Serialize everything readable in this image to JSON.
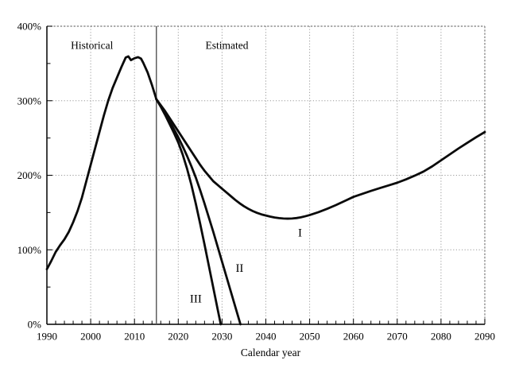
{
  "chart_data": {
    "type": "line",
    "title": "",
    "xlabel": "Calendar year",
    "ylabel": "",
    "x_range": [
      1990,
      2090
    ],
    "y_range_pct": [
      0,
      400
    ],
    "x_major_tick_step": 10,
    "x_minor_tick_step": 2,
    "y_major_tick_step": 100,
    "y_minor_tick_step": 50,
    "x_tick_labels": [
      "1990",
      "2000",
      "2010",
      "2020",
      "2030",
      "2040",
      "2050",
      "2060",
      "2070",
      "2080",
      "2090"
    ],
    "y_tick_labels": [
      "0%",
      "100%",
      "200%",
      "300%",
      "400%"
    ],
    "grid": "dotted",
    "legend_position": "none",
    "divider_year": 2015,
    "colors": {
      "line": "#0a0a0a",
      "grid": "#9a9a9a",
      "frame": "#7a7a7a",
      "divider": "#555555",
      "axis": "#000000",
      "text": "#000000"
    },
    "region_labels": [
      {
        "text": "Historical",
        "year": 2000.3,
        "pct": 375
      },
      {
        "text": "Estimated",
        "year": 2031.1,
        "pct": 375
      }
    ],
    "series": [
      {
        "name": "Historical",
        "label": "",
        "points": [
          [
            1990,
            74
          ],
          [
            1991,
            85
          ],
          [
            1992,
            97
          ],
          [
            1993,
            106
          ],
          [
            1994,
            114
          ],
          [
            1995,
            124
          ],
          [
            1996,
            137
          ],
          [
            1997,
            152
          ],
          [
            1998,
            170
          ],
          [
            1999,
            192
          ],
          [
            2000,
            214
          ],
          [
            2001,
            236
          ],
          [
            2002,
            258
          ],
          [
            2003,
            280
          ],
          [
            2004,
            300
          ],
          [
            2005,
            317
          ],
          [
            2006,
            331
          ],
          [
            2007,
            345
          ],
          [
            2008,
            358
          ],
          [
            2008.6,
            359.5
          ],
          [
            2009.2,
            354.5
          ],
          [
            2010,
            357
          ],
          [
            2010.8,
            358.5
          ],
          [
            2011.5,
            356.5
          ],
          [
            2012,
            351
          ],
          [
            2013,
            338
          ],
          [
            2014,
            321
          ],
          [
            2015,
            302
          ]
        ]
      },
      {
        "name": "Alternative I",
        "label": "I",
        "label_year": 2047.8,
        "label_pct": 123,
        "points": [
          [
            2015,
            302
          ],
          [
            2016,
            294
          ],
          [
            2017,
            286
          ],
          [
            2018,
            277
          ],
          [
            2019,
            268
          ],
          [
            2020,
            259
          ],
          [
            2021,
            250
          ],
          [
            2022,
            241
          ],
          [
            2023,
            232
          ],
          [
            2024,
            223
          ],
          [
            2025,
            214
          ],
          [
            2026,
            206
          ],
          [
            2027,
            199
          ],
          [
            2028,
            192
          ],
          [
            2029,
            187
          ],
          [
            2030,
            182
          ],
          [
            2031,
            177
          ],
          [
            2032,
            172
          ],
          [
            2033,
            167
          ],
          [
            2034,
            162.5
          ],
          [
            2035,
            158.5
          ],
          [
            2036,
            155
          ],
          [
            2037,
            152
          ],
          [
            2038,
            149.5
          ],
          [
            2039,
            147.5
          ],
          [
            2040,
            146
          ],
          [
            2041,
            144.5
          ],
          [
            2042,
            143.3
          ],
          [
            2043,
            142.5
          ],
          [
            2044,
            142
          ],
          [
            2045,
            141.8
          ],
          [
            2046,
            142
          ],
          [
            2047,
            142.6
          ],
          [
            2048,
            143.6
          ],
          [
            2049,
            145
          ],
          [
            2050,
            146.6
          ],
          [
            2052,
            150.5
          ],
          [
            2054,
            155
          ],
          [
            2056,
            160
          ],
          [
            2058,
            165.5
          ],
          [
            2060,
            171
          ],
          [
            2062,
            175
          ],
          [
            2064,
            179
          ],
          [
            2066,
            182.7
          ],
          [
            2068,
            186.3
          ],
          [
            2070,
            190
          ],
          [
            2072,
            194.5
          ],
          [
            2074,
            199.5
          ],
          [
            2076,
            205
          ],
          [
            2078,
            212
          ],
          [
            2080,
            220
          ],
          [
            2082,
            228
          ],
          [
            2084,
            236
          ],
          [
            2086,
            243.5
          ],
          [
            2088,
            251
          ],
          [
            2090,
            258
          ]
        ]
      },
      {
        "name": "Alternative II",
        "label": "II",
        "label_year": 2034.0,
        "label_pct": 76,
        "points": [
          [
            2015,
            302
          ],
          [
            2016,
            293
          ],
          [
            2017,
            283
          ],
          [
            2018,
            273
          ],
          [
            2019,
            262
          ],
          [
            2020,
            251
          ],
          [
            2021,
            239
          ],
          [
            2022,
            226
          ],
          [
            2023,
            212
          ],
          [
            2024,
            197
          ],
          [
            2025,
            180
          ],
          [
            2026,
            162
          ],
          [
            2027,
            143
          ],
          [
            2028,
            124
          ],
          [
            2029,
            104
          ],
          [
            2030,
            84
          ],
          [
            2031,
            64
          ],
          [
            2032,
            44
          ],
          [
            2033,
            24
          ],
          [
            2034,
            4
          ],
          [
            2034.2,
            0
          ]
        ]
      },
      {
        "name": "Alternative III",
        "label": "III",
        "label_year": 2024.0,
        "label_pct": 34.5,
        "points": [
          [
            2015,
            302
          ],
          [
            2016,
            292
          ],
          [
            2017,
            281
          ],
          [
            2018,
            269
          ],
          [
            2019,
            257
          ],
          [
            2020,
            244
          ],
          [
            2021,
            228
          ],
          [
            2022,
            209
          ],
          [
            2023,
            187
          ],
          [
            2024,
            162
          ],
          [
            2025,
            135
          ],
          [
            2026,
            107
          ],
          [
            2027,
            78
          ],
          [
            2028,
            49
          ],
          [
            2029,
            20
          ],
          [
            2029.7,
            0
          ]
        ]
      }
    ]
  }
}
